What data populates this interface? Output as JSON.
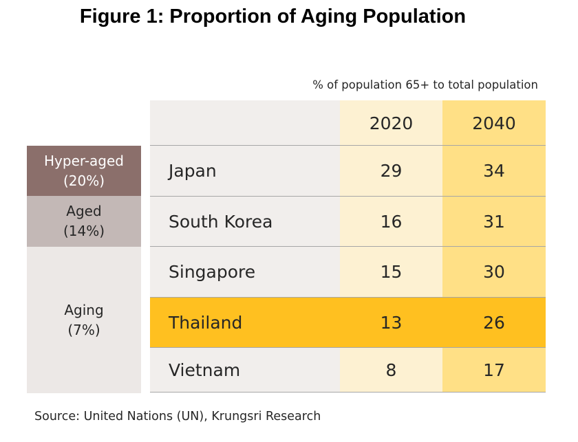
{
  "chart_data": {
    "type": "table",
    "title": "Figure 1: Proportion of Aging Population",
    "unit_note": "% of population 65+ to total population",
    "columns": [
      "2020",
      "2040"
    ],
    "categories": [
      "Japan",
      "South Korea",
      "Singapore",
      "Thailand",
      "Vietnam"
    ],
    "series": [
      {
        "name": "2020",
        "values": [
          29,
          16,
          15,
          13,
          8
        ]
      },
      {
        "name": "2040",
        "values": [
          34,
          31,
          30,
          26,
          17
        ]
      }
    ],
    "highlighted_row": "Thailand",
    "classification": [
      {
        "line1": "Hyper-aged",
        "line2": "(20%)",
        "color": "#8b6f6b",
        "text_color": "#ffffff"
      },
      {
        "line1": "Aged",
        "line2": "(14%)",
        "color": "#c3b8b6",
        "text_color": "#262626"
      },
      {
        "line1": "Aging",
        "line2": "(7%)",
        "color": "#ece8e6",
        "text_color": "#262626"
      }
    ],
    "colors": {
      "header_bg": "#f1eeec",
      "col_2020_bg": "#fdf1d2",
      "col_2040_bg": "#ffe086",
      "highlight_row_bg": "#ffc020"
    }
  },
  "source": "Source: United Nations (UN), Krungsri Research"
}
